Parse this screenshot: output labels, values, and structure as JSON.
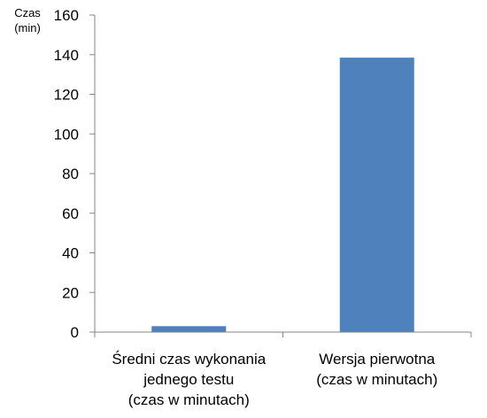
{
  "chart_data": {
    "type": "bar",
    "title": "",
    "ylabel_lines": [
      "Czas",
      "(min)"
    ],
    "xlabel": "",
    "categories": [
      [
        "Średni czas wykonania",
        "jednego testu",
        "(czas w minutach)"
      ],
      [
        "Wersja pierwotna",
        "(czas w minutach)"
      ]
    ],
    "values": [
      3,
      138.5
    ],
    "ylim": [
      0,
      160
    ],
    "yticks": [
      0,
      20,
      40,
      60,
      80,
      100,
      120,
      140,
      160
    ],
    "grid": false,
    "legend": "none",
    "bar_color": "#4f81bd",
    "axis_color": "#868686"
  }
}
